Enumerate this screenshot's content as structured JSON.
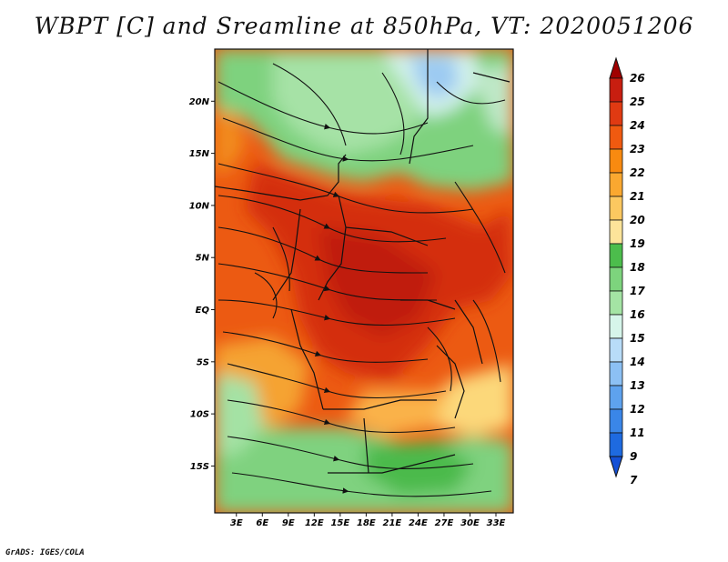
{
  "title": "WBPT [C] and Sreamline at 850hPa, VT: 2020051206",
  "credit": "GrADS: IGES/COLA",
  "map": {
    "lat_labels": [
      "20N",
      "15N",
      "10N",
      "5N",
      "EQ",
      "5S",
      "10S",
      "15S"
    ],
    "lat_values": [
      20,
      15,
      10,
      5,
      0,
      -5,
      -10,
      -15
    ],
    "lon_labels": [
      "3E",
      "6E",
      "9E",
      "12E",
      "15E",
      "18E",
      "21E",
      "24E",
      "27E",
      "30E",
      "33E"
    ],
    "lon_values": [
      3,
      6,
      9,
      12,
      15,
      18,
      21,
      24,
      27,
      30,
      33
    ],
    "lon_range": [
      0.5,
      35
    ],
    "lat_range": [
      -19.5,
      25
    ]
  },
  "colorbar": {
    "labels": [
      "26",
      "25",
      "24",
      "23",
      "22",
      "21",
      "20",
      "19",
      "18",
      "17",
      "16",
      "15",
      "14",
      "13",
      "12",
      "11",
      "9",
      "7"
    ],
    "colors": [
      "#a00000",
      "#c81e10",
      "#e03a12",
      "#f05a10",
      "#f88a10",
      "#faa830",
      "#fcc860",
      "#fde49a",
      "#4cbd4c",
      "#7dd47d",
      "#a4e4a4",
      "#d6f5ea",
      "#b8dcf8",
      "#8cc0f4",
      "#5ea2ee",
      "#3a86e8",
      "#1e6ae0",
      "#1450d6"
    ]
  },
  "colors": {
    "frame": "#111111"
  }
}
